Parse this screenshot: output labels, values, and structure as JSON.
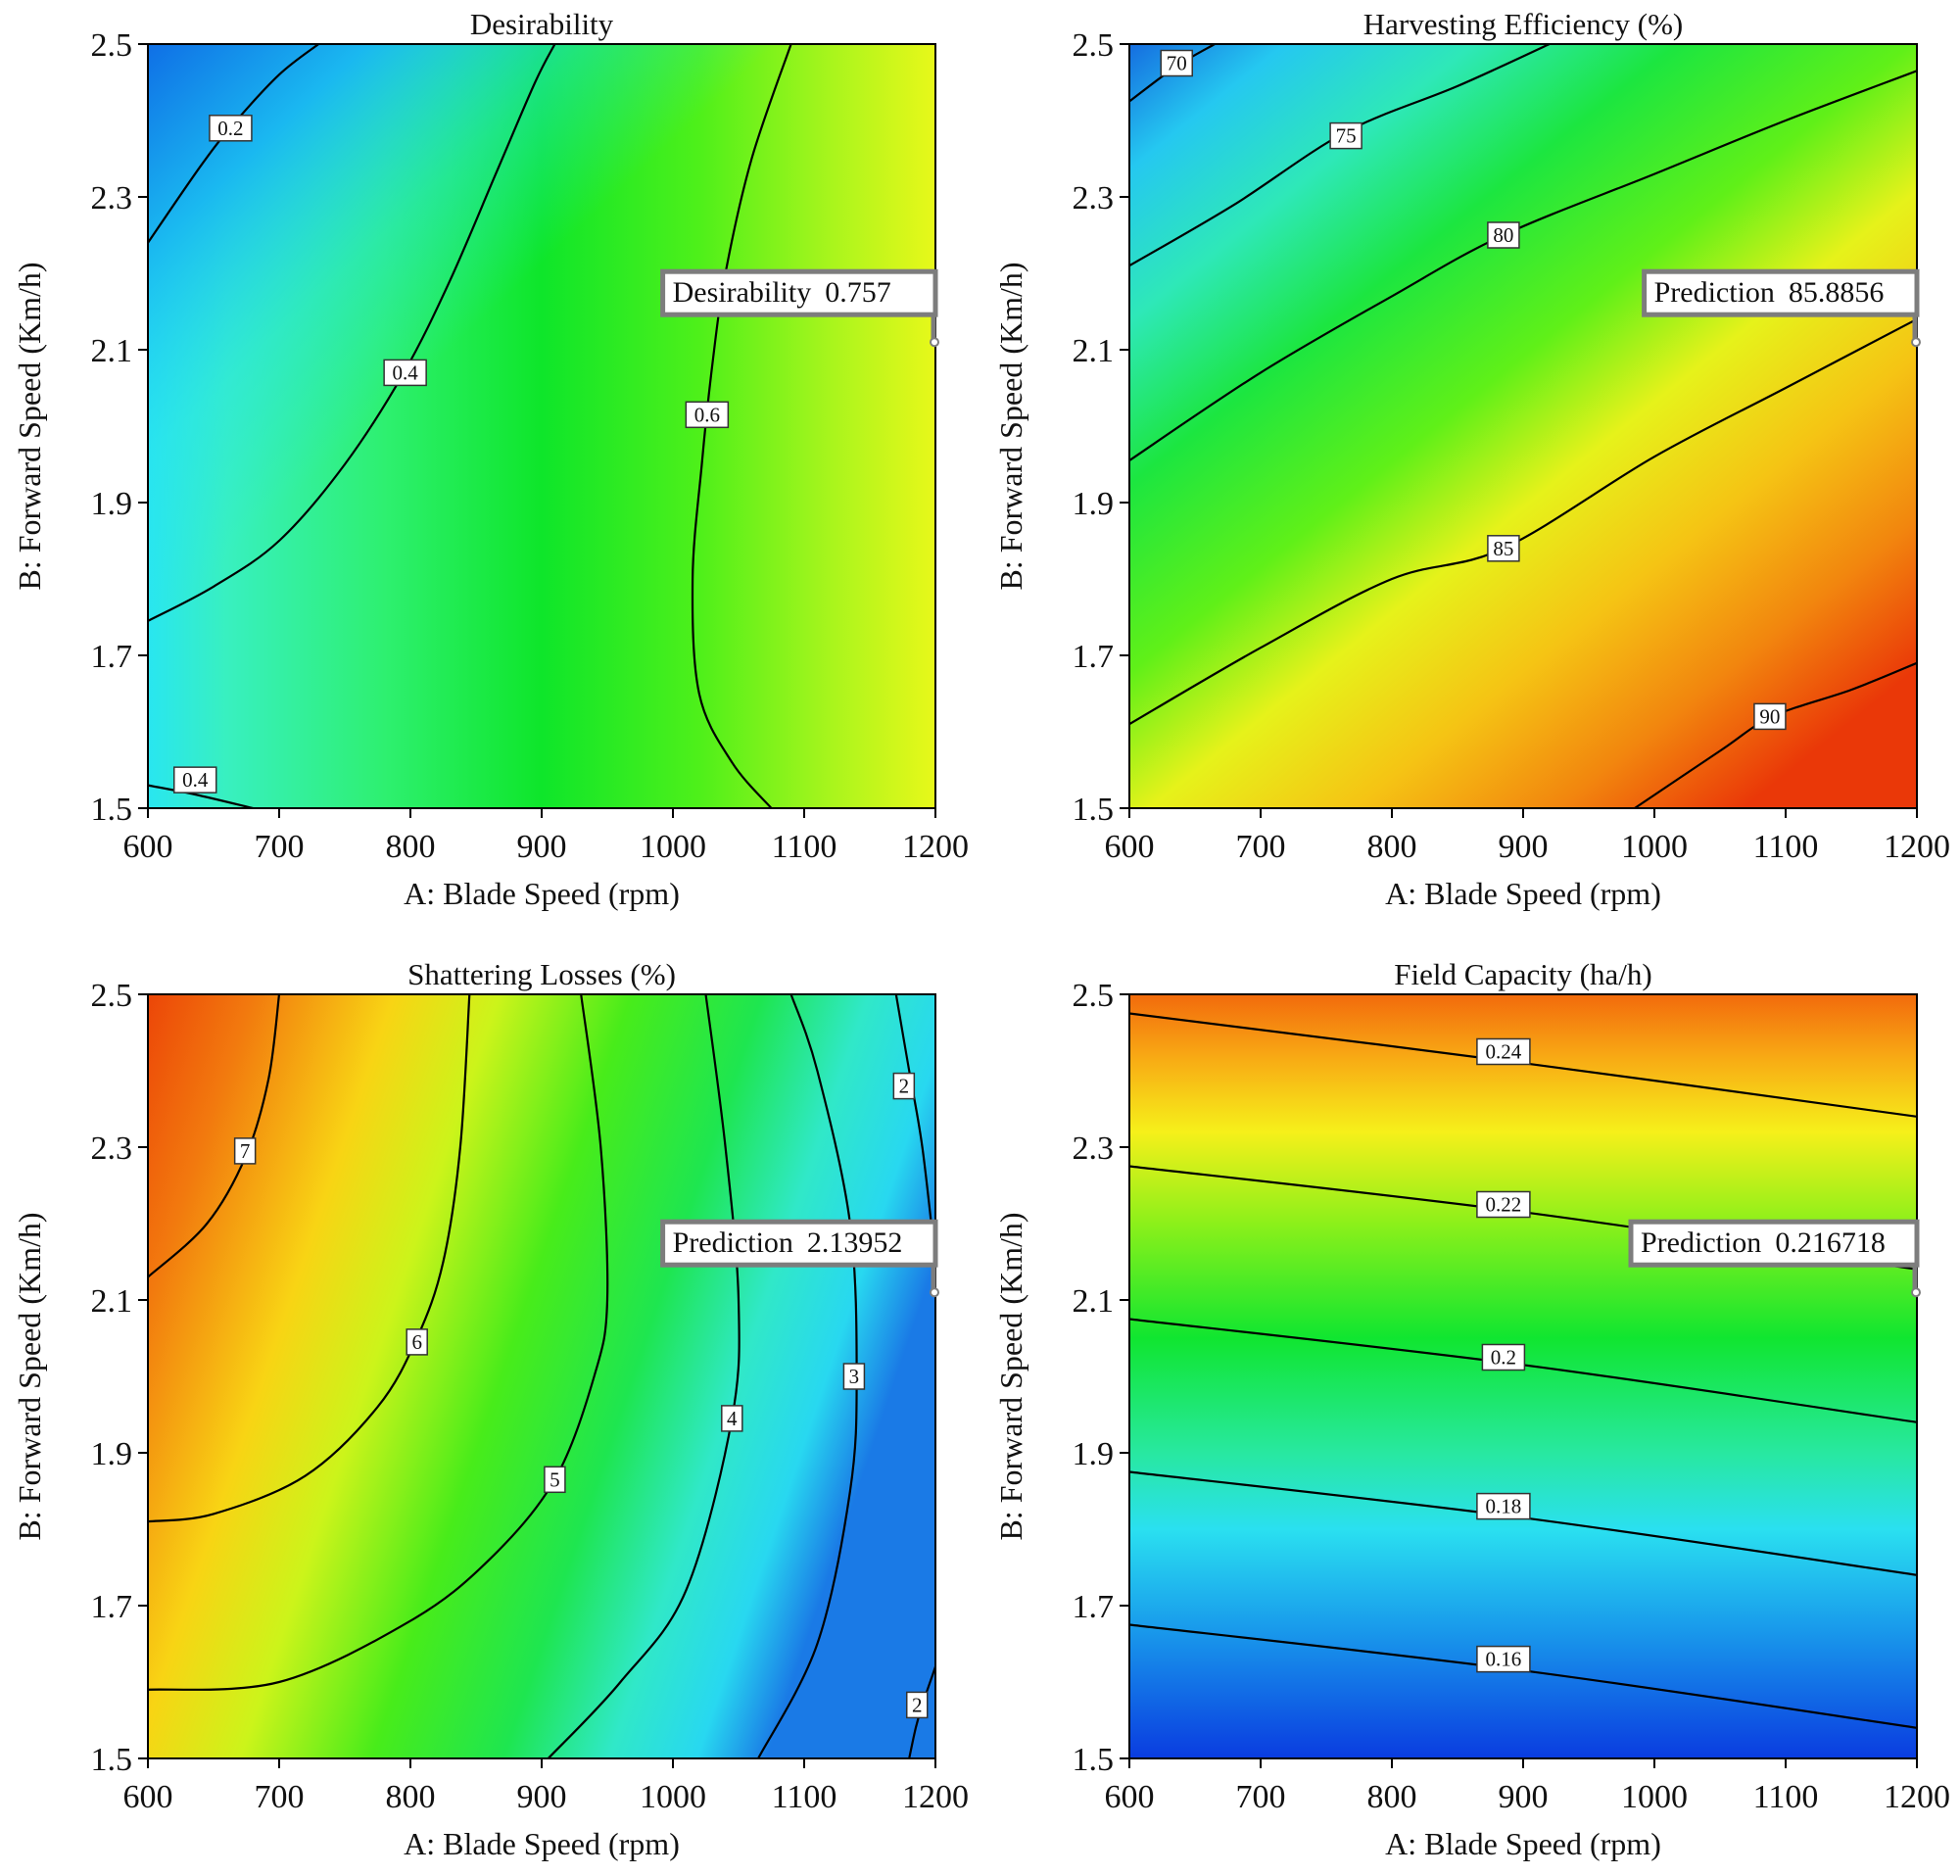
{
  "chart_data": [
    {
      "type": "contour",
      "title": "Desirability",
      "xlabel": "A: Blade Speed (rpm)",
      "ylabel": "B: Forward Speed (Km/h)",
      "xlim": [
        600,
        1200
      ],
      "ylim": [
        1.5,
        2.5
      ],
      "x_ticks": [
        "600",
        "700",
        "800",
        "900",
        "1000",
        "1100",
        "1200"
      ],
      "y_ticks": [
        "1.5",
        "1.7",
        "1.9",
        "2.1",
        "2.3",
        "2.5"
      ],
      "colormap": "rainbow (blue = low, red = high)",
      "contours": [
        {
          "level": "0.2",
          "points": [
            [
              600,
              2.24
            ],
            [
              640,
              2.34
            ],
            [
              665,
              2.395
            ],
            [
              700,
              2.46
            ],
            [
              730,
              2.5
            ]
          ],
          "label_at": [
            663,
            2.39
          ]
        },
        {
          "level": "0.4",
          "points": [
            [
              600,
              1.745
            ],
            [
              650,
              1.79
            ],
            [
              700,
              1.85
            ],
            [
              750,
              1.95
            ],
            [
              795,
              2.07
            ],
            [
              830,
              2.19
            ],
            [
              865,
              2.33
            ],
            [
              895,
              2.45
            ],
            [
              910,
              2.5
            ]
          ],
          "label_at": [
            796,
            2.07
          ]
        },
        {
          "level": "0.4",
          "points": [
            [
              600,
              1.53
            ],
            [
              636,
              1.518
            ],
            [
              680,
              1.5
            ]
          ],
          "label_at": [
            636,
            1.537
          ]
        },
        {
          "level": "0.6",
          "points": [
            [
              1075,
              1.5
            ],
            [
              1045,
              1.56
            ],
            [
              1020,
              1.65
            ],
            [
              1015,
              1.8
            ],
            [
              1022,
              1.95
            ],
            [
              1030,
              2.08
            ],
            [
              1040,
              2.2
            ],
            [
              1060,
              2.35
            ],
            [
              1090,
              2.5
            ]
          ],
          "label_at": [
            1026,
            2.015
          ]
        }
      ],
      "prediction": {
        "label": "Desirability",
        "value": "0.757",
        "x": 1200,
        "y": 2.11
      }
    },
    {
      "type": "contour",
      "title": "Harvesting Efficiency (%)",
      "xlabel": "A: Blade Speed (rpm)",
      "ylabel": "B: Forward Speed (Km/h)",
      "xlim": [
        600,
        1200
      ],
      "ylim": [
        1.5,
        2.5
      ],
      "x_ticks": [
        "600",
        "700",
        "800",
        "900",
        "1000",
        "1100",
        "1200"
      ],
      "y_ticks": [
        "1.5",
        "1.7",
        "1.9",
        "2.1",
        "2.3",
        "2.5"
      ],
      "colormap": "rainbow (blue = low, red = high)",
      "contours": [
        {
          "level": "70",
          "points": [
            [
              600,
              2.425
            ],
            [
              635,
              2.47
            ],
            [
              665,
              2.5
            ]
          ],
          "label_at": [
            636,
            2.475
          ]
        },
        {
          "level": "75",
          "points": [
            [
              600,
              2.21
            ],
            [
              680,
              2.29
            ],
            [
              765,
              2.385
            ],
            [
              850,
              2.445
            ],
            [
              920,
              2.5
            ]
          ],
          "label_at": [
            765,
            2.38
          ]
        },
        {
          "level": "80",
          "points": [
            [
              600,
              1.955
            ],
            [
              700,
              2.07
            ],
            [
              800,
              2.17
            ],
            [
              885,
              2.25
            ],
            [
              1000,
              2.33
            ],
            [
              1100,
              2.4
            ],
            [
              1200,
              2.465
            ]
          ],
          "label_at": [
            885,
            2.25
          ]
        },
        {
          "level": "85",
          "points": [
            [
              600,
              1.61
            ],
            [
              700,
              1.71
            ],
            [
              800,
              1.8
            ],
            [
              885,
              1.84
            ],
            [
              1000,
              1.96
            ],
            [
              1100,
              2.05
            ],
            [
              1200,
              2.14
            ]
          ],
          "label_at": [
            885,
            1.84
          ]
        },
        {
          "level": "90",
          "points": [
            [
              985,
              1.5
            ],
            [
              1050,
              1.575
            ],
            [
              1090,
              1.62
            ],
            [
              1150,
              1.655
            ],
            [
              1200,
              1.69
            ]
          ],
          "label_at": [
            1088,
            1.62
          ]
        }
      ],
      "prediction": {
        "label": "Prediction",
        "value": "85.8856",
        "x": 1200,
        "y": 2.11
      }
    },
    {
      "type": "contour",
      "title": "Shattering Losses (%)",
      "xlabel": "A: Blade Speed (rpm)",
      "ylabel": "B: Forward Speed (Km/h)",
      "xlim": [
        600,
        1200
      ],
      "ylim": [
        1.5,
        2.5
      ],
      "x_ticks": [
        "600",
        "700",
        "800",
        "900",
        "1000",
        "1100",
        "1200"
      ],
      "y_ticks": [
        "1.5",
        "1.7",
        "1.9",
        "2.1",
        "2.3",
        "2.5"
      ],
      "colormap": "rainbow (blue = low, red = high)",
      "contours": [
        {
          "level": "7",
          "points": [
            [
              600,
              2.13
            ],
            [
              645,
              2.2
            ],
            [
              675,
              2.29
            ],
            [
              692,
              2.39
            ],
            [
              700,
              2.5
            ]
          ],
          "label_at": [
            674,
            2.295
          ]
        },
        {
          "level": "6",
          "points": [
            [
              600,
              1.81
            ],
            [
              650,
              1.82
            ],
            [
              720,
              1.87
            ],
            [
              775,
              1.96
            ],
            [
              805,
              2.05
            ],
            [
              825,
              2.15
            ],
            [
              838,
              2.3
            ],
            [
              845,
              2.5
            ]
          ],
          "label_at": [
            805,
            2.045
          ]
        },
        {
          "level": "5",
          "points": [
            [
              600,
              1.59
            ],
            [
              700,
              1.6
            ],
            [
              800,
              1.68
            ],
            [
              860,
              1.76
            ],
            [
              910,
              1.865
            ],
            [
              940,
              2.0
            ],
            [
              950,
              2.1
            ],
            [
              945,
              2.3
            ],
            [
              930,
              2.5
            ]
          ],
          "label_at": [
            910,
            1.865
          ]
        },
        {
          "level": "4",
          "points": [
            [
              905,
              1.5
            ],
            [
              960,
              1.6
            ],
            [
              1010,
              1.72
            ],
            [
              1045,
              1.945
            ],
            [
              1050,
              2.1
            ],
            [
              1040,
              2.3
            ],
            [
              1025,
              2.5
            ]
          ],
          "label_at": [
            1045,
            1.945
          ]
        },
        {
          "level": "3",
          "points": [
            [
              1065,
              1.5
            ],
            [
              1110,
              1.65
            ],
            [
              1135,
              1.85
            ],
            [
              1140,
              2.0
            ],
            [
              1135,
              2.2
            ],
            [
              1110,
              2.4
            ],
            [
              1090,
              2.5
            ]
          ],
          "label_at": [
            1138,
            2.0
          ]
        },
        {
          "level": "2",
          "points": [
            [
              1170,
              2.5
            ],
            [
              1180,
              2.4
            ],
            [
              1190,
              2.3
            ],
            [
              1200,
              2.15
            ]
          ],
          "label_at": [
            1176,
            2.38
          ]
        },
        {
          "level": "2",
          "points": [
            [
              1180,
              1.5
            ],
            [
              1185,
              1.54
            ],
            [
              1190,
              1.57
            ],
            [
              1200,
              1.62
            ]
          ],
          "label_at": [
            1186,
            1.57
          ]
        }
      ],
      "prediction": {
        "label": "Prediction",
        "value": "2.13952",
        "x": 1200,
        "y": 2.11
      }
    },
    {
      "type": "contour",
      "title": "Field Capacity (ha/h)",
      "xlabel": "A: Blade Speed (rpm)",
      "ylabel": "B: Forward Speed (Km/h)",
      "xlim": [
        600,
        1200
      ],
      "ylim": [
        1.5,
        2.5
      ],
      "x_ticks": [
        "600",
        "700",
        "800",
        "900",
        "1000",
        "1100",
        "1200"
      ],
      "y_ticks": [
        "1.5",
        "1.7",
        "1.9",
        "2.1",
        "2.3",
        "2.5"
      ],
      "colormap": "rainbow (blue = low, red = high)",
      "contours": [
        {
          "level": "0.24",
          "points": [
            [
              600,
              2.475
            ],
            [
              900,
              2.41
            ],
            [
              1200,
              2.34
            ]
          ],
          "label_at": [
            885,
            2.425
          ]
        },
        {
          "level": "0.22",
          "points": [
            [
              600,
              2.275
            ],
            [
              900,
              2.215
            ],
            [
              1200,
              2.14
            ]
          ],
          "label_at": [
            885,
            2.225
          ]
        },
        {
          "level": "0.2",
          "points": [
            [
              600,
              2.075
            ],
            [
              900,
              2.015
            ],
            [
              1200,
              1.94
            ]
          ],
          "label_at": [
            885,
            2.025
          ]
        },
        {
          "level": "0.18",
          "points": [
            [
              600,
              1.875
            ],
            [
              900,
              1.815
            ],
            [
              1200,
              1.74
            ]
          ],
          "label_at": [
            885,
            1.83
          ]
        },
        {
          "level": "0.16",
          "points": [
            [
              600,
              1.675
            ],
            [
              900,
              1.615
            ],
            [
              1200,
              1.54
            ]
          ],
          "label_at": [
            885,
            1.63
          ]
        }
      ],
      "prediction": {
        "label": "Prediction",
        "value": "0.216718",
        "x": 1200,
        "y": 2.11
      }
    }
  ]
}
